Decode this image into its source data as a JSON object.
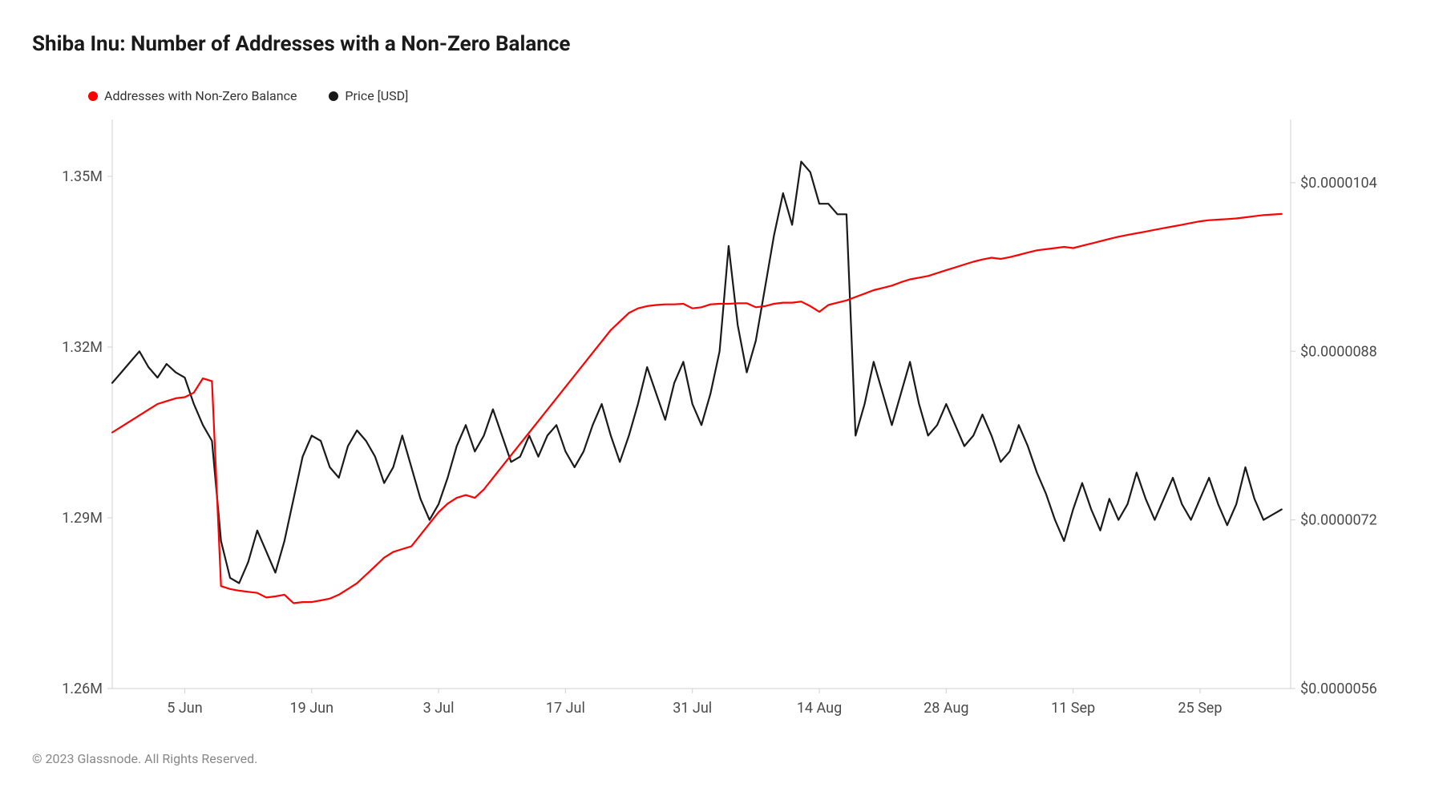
{
  "title": "Shiba Inu: Number of Addresses with a Non-Zero Balance",
  "footer": "© 2023 Glassnode. All Rights Reserved.",
  "legend": {
    "series1": {
      "label": "Addresses with Non-Zero Balance",
      "color": "#ff0000"
    },
    "series2": {
      "label": "Price [USD]",
      "color": "#1a1a1a"
    }
  },
  "chart": {
    "type": "line-dual-axis",
    "background_color": "#ffffff",
    "plot_border_color": "#d0d0d0",
    "axis_font_size": 18,
    "axis_text_color": "#4a4a4a",
    "line_width": 2.2,
    "x": {
      "tick_positions": [
        8,
        22,
        36,
        50,
        64,
        78,
        92,
        106,
        120
      ],
      "tick_labels": [
        "5 Jun",
        "19 Jun",
        "3 Jul",
        "17 Jul",
        "31 Jul",
        "14 Aug",
        "28 Aug",
        "11 Sep",
        "25 Sep"
      ],
      "xmin": 0,
      "xmax": 130
    },
    "y_left": {
      "min": 1260000,
      "max": 1360000,
      "ticks": [
        1260000,
        1290000,
        1320000,
        1350000
      ],
      "labels": [
        "1.26M",
        "1.29M",
        "1.32M",
        "1.35M"
      ]
    },
    "y_right": {
      "min": 5.6e-06,
      "max": 1.1e-05,
      "ticks": [
        5.6e-06,
        7.2e-06,
        8.8e-06,
        1.04e-05
      ],
      "labels": [
        "$0.0000056",
        "$0.0000072",
        "$0.0000088",
        "$0.0000104"
      ]
    },
    "series_addresses": {
      "color": "#ff0000",
      "data": [
        1305000,
        1306000,
        1307000,
        1308000,
        1309000,
        1310000,
        1310500,
        1311000,
        1311200,
        1312000,
        1314500,
        1314000,
        1278000,
        1277500,
        1277200,
        1277000,
        1276800,
        1276000,
        1276200,
        1276500,
        1275000,
        1275200,
        1275200,
        1275500,
        1275800,
        1276500,
        1277500,
        1278500,
        1280000,
        1281500,
        1283000,
        1284000,
        1284500,
        1285000,
        1287000,
        1289000,
        1291000,
        1292500,
        1293500,
        1294000,
        1293500,
        1295000,
        1297000,
        1299000,
        1301000,
        1303000,
        1305000,
        1307000,
        1309000,
        1311000,
        1313000,
        1315000,
        1317000,
        1319000,
        1321000,
        1323000,
        1324500,
        1326000,
        1326800,
        1327200,
        1327400,
        1327500,
        1327500,
        1327600,
        1326800,
        1327000,
        1327500,
        1327600,
        1327600,
        1327700,
        1327700,
        1327000,
        1327200,
        1327600,
        1327800,
        1327800,
        1328000,
        1327200,
        1326200,
        1327400,
        1327800,
        1328200,
        1328800,
        1329400,
        1330000,
        1330400,
        1330800,
        1331400,
        1331900,
        1332200,
        1332500,
        1333000,
        1333500,
        1334000,
        1334500,
        1335000,
        1335400,
        1335700,
        1335500,
        1335800,
        1336200,
        1336600,
        1337000,
        1337200,
        1337400,
        1337600,
        1337400,
        1337800,
        1338200,
        1338600,
        1339000,
        1339400,
        1339700,
        1340000,
        1340300,
        1340600,
        1340900,
        1341200,
        1341500,
        1341800,
        1342100,
        1342300,
        1342400,
        1342500,
        1342600,
        1342800,
        1343000,
        1343200,
        1343300,
        1343400
      ]
    },
    "series_price": {
      "color": "#1a1a1a",
      "data": [
        8.5e-06,
        8.6e-06,
        8.7e-06,
        8.8e-06,
        8.65e-06,
        8.55e-06,
        8.68e-06,
        8.6e-06,
        8.55e-06,
        8.3e-06,
        8.1e-06,
        7.95e-06,
        7e-06,
        6.65e-06,
        6.6e-06,
        6.8e-06,
        7.1e-06,
        6.9e-06,
        6.7e-06,
        7e-06,
        7.4e-06,
        7.8e-06,
        8e-06,
        7.95e-06,
        7.7e-06,
        7.6e-06,
        7.9e-06,
        8.05e-06,
        7.95e-06,
        7.8e-06,
        7.55e-06,
        7.7e-06,
        8e-06,
        7.7e-06,
        7.4e-06,
        7.2e-06,
        7.35e-06,
        7.6e-06,
        7.9e-06,
        8.1e-06,
        7.85e-06,
        8e-06,
        8.25e-06,
        8e-06,
        7.75e-06,
        7.8e-06,
        8e-06,
        7.8e-06,
        8e-06,
        8.1e-06,
        7.85e-06,
        7.7e-06,
        7.85e-06,
        8.1e-06,
        8.3e-06,
        8e-06,
        7.75e-06,
        8e-06,
        8.3e-06,
        8.65e-06,
        8.4e-06,
        8.15e-06,
        8.5e-06,
        8.7e-06,
        8.3e-06,
        8.1e-06,
        8.4e-06,
        8.8e-06,
        9.8e-06,
        9.05e-06,
        8.6e-06,
        8.9e-06,
        9.4e-06,
        9.9e-06,
        1.03e-05,
        1e-05,
        1.06e-05,
        1.05e-05,
        1.02e-05,
        1.02e-05,
        1.01e-05,
        1.01e-05,
        8e-06,
        8.3e-06,
        8.7e-06,
        8.4e-06,
        8.1e-06,
        8.4e-06,
        8.7e-06,
        8.3e-06,
        8e-06,
        8.1e-06,
        8.3e-06,
        8.1e-06,
        7.9e-06,
        8e-06,
        8.2e-06,
        8e-06,
        7.75e-06,
        7.85e-06,
        8.1e-06,
        7.9e-06,
        7.65e-06,
        7.45e-06,
        7.2e-06,
        7e-06,
        7.3e-06,
        7.55e-06,
        7.3e-06,
        7.1e-06,
        7.4e-06,
        7.2e-06,
        7.35e-06,
        7.65e-06,
        7.4e-06,
        7.2e-06,
        7.4e-06,
        7.6e-06,
        7.35e-06,
        7.2e-06,
        7.4e-06,
        7.6e-06,
        7.35e-06,
        7.15e-06,
        7.35e-06,
        7.7e-06,
        7.4e-06,
        7.2e-06,
        7.25e-06,
        7.3e-06
      ]
    }
  }
}
